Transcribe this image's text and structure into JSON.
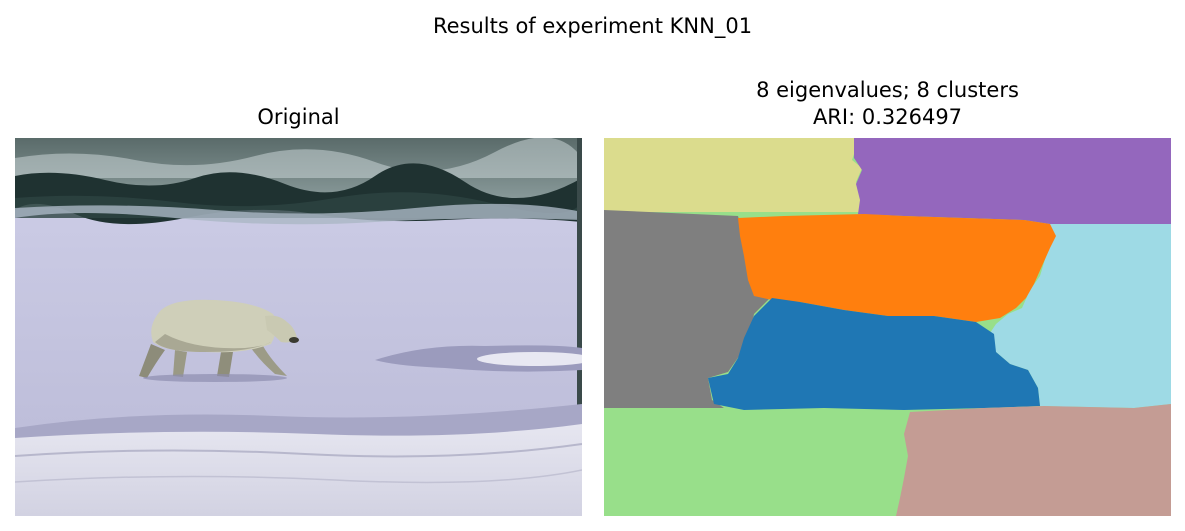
{
  "figure": {
    "suptitle": "Results of experiment KNN_01"
  },
  "left_panel": {
    "title": "Original",
    "image_description": "polar bear walking on snow and ice with dark tree line in background"
  },
  "right_panel": {
    "title_line1": "8 eigenvalues; 8 clusters",
    "title_line2": "ARI: 0.326497",
    "segments": [
      {
        "name": "top-left",
        "color": "#dbdc8d"
      },
      {
        "name": "top-right",
        "color": "#9467bd"
      },
      {
        "name": "middle-left",
        "color": "#7f7f7f"
      },
      {
        "name": "middle-orange",
        "color": "#ff7f0e"
      },
      {
        "name": "middle-right",
        "color": "#9edae5"
      },
      {
        "name": "center-blue",
        "color": "#1f77b4"
      },
      {
        "name": "bottom-left",
        "color": "#98df8a"
      },
      {
        "name": "bottom-right",
        "color": "#c49c94"
      }
    ]
  }
}
